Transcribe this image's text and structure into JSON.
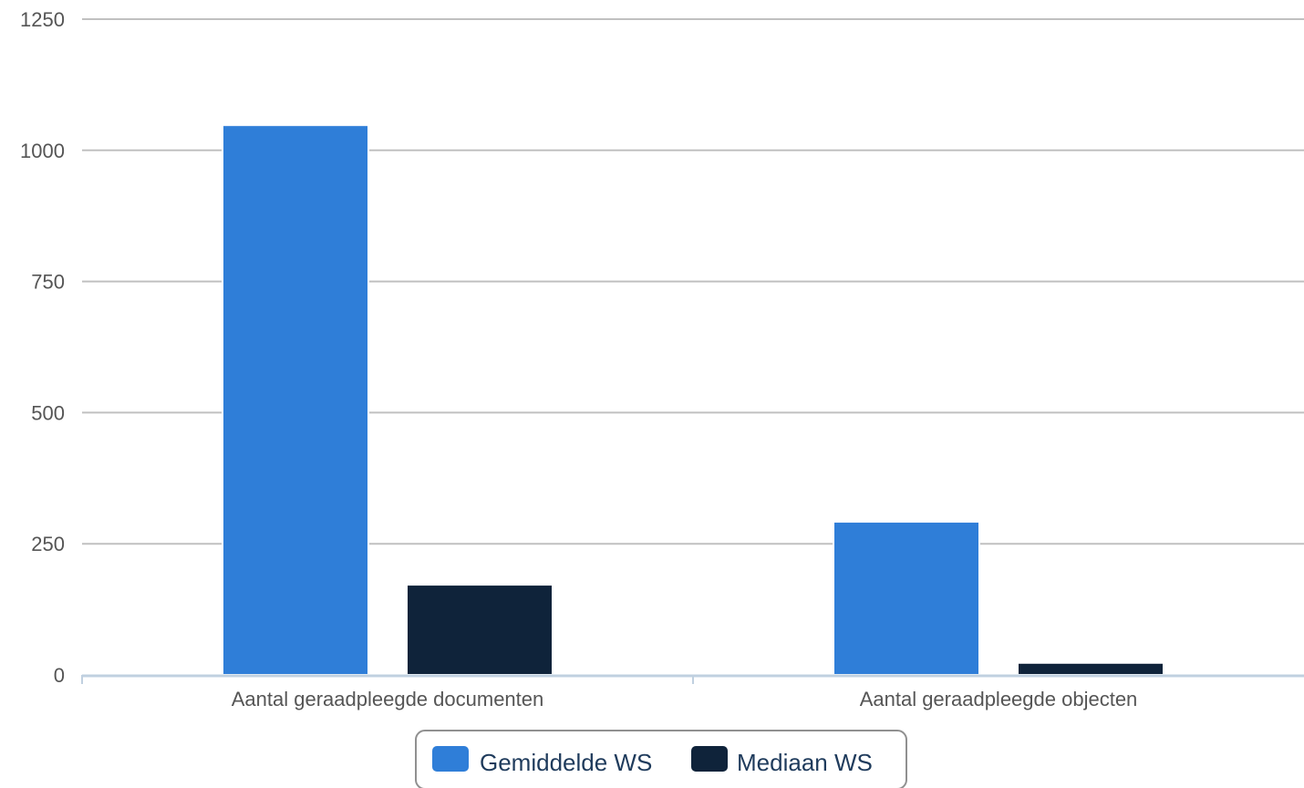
{
  "chart_data": {
    "type": "bar",
    "categories": [
      "Aantal geraadpleegde documenten",
      "Aantal geraadpleegde objecten"
    ],
    "series": [
      {
        "name": "Gemiddelde WS",
        "values": [
          1048,
          292
        ],
        "color": "#2f7ed8"
      },
      {
        "name": "Mediaan WS",
        "values": [
          172,
          23
        ],
        "color": "#0f233a"
      }
    ],
    "yticks": [
      0,
      250,
      500,
      750,
      1000,
      1250
    ],
    "ylim": [
      0,
      1250
    ],
    "grid": true,
    "legend": "bottom-center",
    "colors": {
      "grid": "#c0c0c0",
      "axis": "#c0d0e0",
      "legend_border": "#909090"
    }
  }
}
